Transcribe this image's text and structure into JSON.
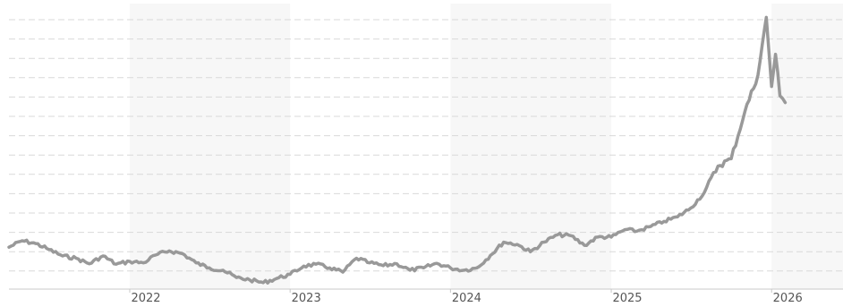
{
  "chart_data": {
    "type": "line",
    "title": "",
    "xlabel": "",
    "ylabel": "",
    "grid": true,
    "legend": "none",
    "x_ticks": [
      "2022",
      "2023",
      "2024",
      "2025",
      "2026"
    ],
    "x_range": [
      "2021-04",
      "2026-02"
    ],
    "shaded_years": [
      "2022",
      "2024",
      "2026"
    ],
    "series": [
      {
        "color": "#999999",
        "points": [
          [
            "2021-04",
            46.1
          ],
          [
            "2021-05",
            47.5
          ],
          [
            "2021-06",
            46.9
          ],
          [
            "2021-07",
            45.6
          ],
          [
            "2021-08",
            44.2
          ],
          [
            "2021-09",
            43.7
          ],
          [
            "2021-10",
            42.5
          ],
          [
            "2021-11",
            44.2
          ],
          [
            "2021-12",
            42.4
          ],
          [
            "2022-01",
            43.0
          ],
          [
            "2022-02",
            42.7
          ],
          [
            "2022-03",
            44.4
          ],
          [
            "2022-04",
            45.3
          ],
          [
            "2022-05",
            44.7
          ],
          [
            "2022-06",
            42.7
          ],
          [
            "2022-07",
            41.6
          ],
          [
            "2022-08",
            41.1
          ],
          [
            "2022-09",
            39.5
          ],
          [
            "2022-10",
            39.0
          ],
          [
            "2022-11",
            38.4
          ],
          [
            "2022-12",
            39.3
          ],
          [
            "2023-01",
            40.2
          ],
          [
            "2023-02",
            42.0
          ],
          [
            "2023-03",
            42.4
          ],
          [
            "2023-04",
            41.6
          ],
          [
            "2023-05",
            40.7
          ],
          [
            "2023-06",
            43.7
          ],
          [
            "2023-07",
            42.7
          ],
          [
            "2023-08",
            42.1
          ],
          [
            "2023-09",
            42.5
          ],
          [
            "2023-10",
            41.1
          ],
          [
            "2023-11",
            41.6
          ],
          [
            "2023-12",
            42.6
          ],
          [
            "2024-01",
            41.6
          ],
          [
            "2024-02",
            41.1
          ],
          [
            "2024-03",
            41.6
          ],
          [
            "2024-04",
            44.3
          ],
          [
            "2024-05",
            47.2
          ],
          [
            "2024-06",
            46.7
          ],
          [
            "2024-07",
            45.1
          ],
          [
            "2024-08",
            47.2
          ],
          [
            "2024-09",
            48.8
          ],
          [
            "2024-10",
            48.6
          ],
          [
            "2024-11",
            46.5
          ],
          [
            "2024-12",
            48.3
          ],
          [
            "2025-01",
            48.3
          ],
          [
            "2025-02",
            49.9
          ],
          [
            "2025-03",
            49.6
          ],
          [
            "2025-04",
            50.6
          ],
          [
            "2025-05",
            51.7
          ],
          [
            "2025-06",
            52.7
          ],
          [
            "2025-07",
            54.6
          ],
          [
            "2025-08",
            58.0
          ],
          [
            "2025-09",
            63.7
          ],
          [
            "2025-10",
            65.3
          ],
          [
            "2025-11",
            75.5
          ],
          [
            "2025-12",
            83.5
          ],
          [
            "2025-12-20",
            96.0
          ],
          [
            "2026-01-01",
            81.0
          ],
          [
            "2026-01-10",
            88.0
          ],
          [
            "2026-01-20",
            79.0
          ],
          [
            "2026-02",
            77.5
          ]
        ]
      }
    ]
  }
}
